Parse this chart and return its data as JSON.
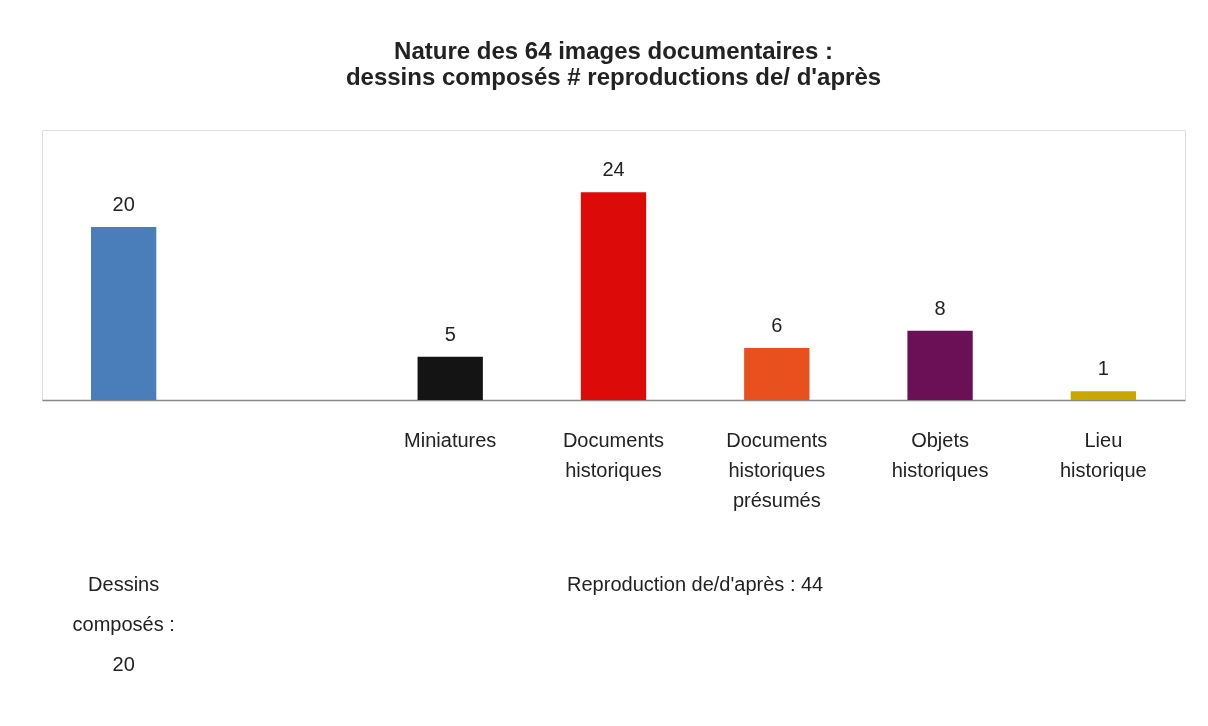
{
  "chart_data": {
    "type": "bar",
    "title": "Nature des 64 images documentaires :\ndessins composés # reproductions de/ d'après",
    "categories": [
      null,
      null,
      "Miniatures",
      "Documents historiques",
      "Documents historiques présumés",
      "Objets historiques",
      "Lieu historique"
    ],
    "values": [
      20,
      null,
      5,
      24,
      6,
      8,
      1
    ],
    "colors": [
      "#4a7ebb",
      "#ffffff",
      "#141414",
      "#dd0a0a",
      "#e8501e",
      "#6b0f57",
      "#c8a800"
    ],
    "data_labels": true,
    "annotations": [
      "Dessins composés : 20",
      "Reproduction de/d'après : 44"
    ]
  }
}
